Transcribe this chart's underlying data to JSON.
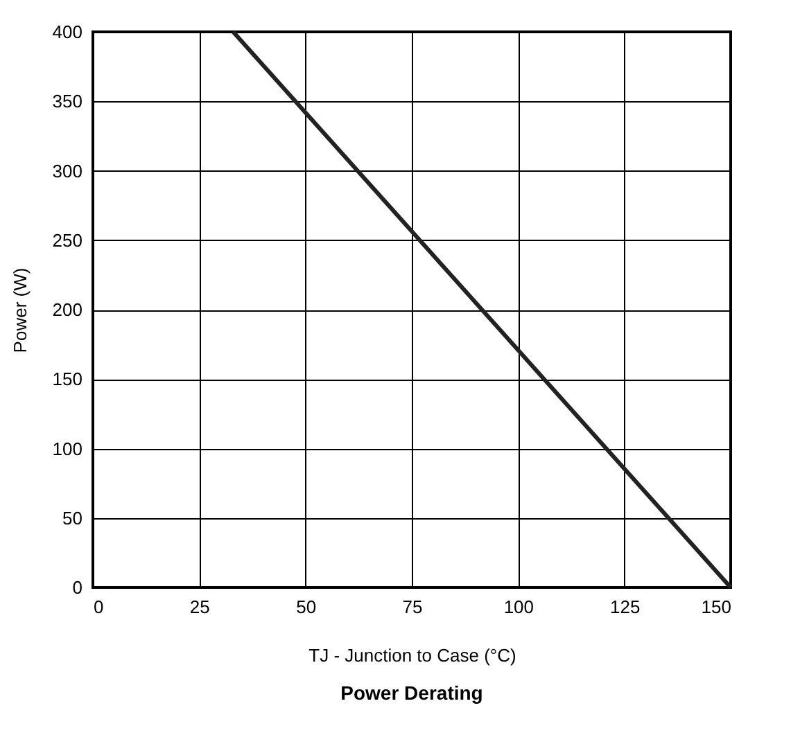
{
  "chart_data": {
    "type": "line",
    "title": "Power Derating",
    "xlabel": "TJ - Junction to Case (°C)",
    "ylabel": "Power (W)",
    "x": [
      33,
      150
    ],
    "series": [
      {
        "color": "#222222",
        "values": [
          400,
          0
        ]
      }
    ],
    "xlim": [
      0,
      150
    ],
    "xticks": [
      0,
      25,
      50,
      75,
      100,
      125,
      150
    ],
    "ylim": [
      0,
      400
    ],
    "yticks": [
      0,
      50,
      100,
      150,
      200,
      250,
      300,
      350,
      400
    ],
    "grid": true,
    "marker": "none",
    "line_style": "solid"
  }
}
